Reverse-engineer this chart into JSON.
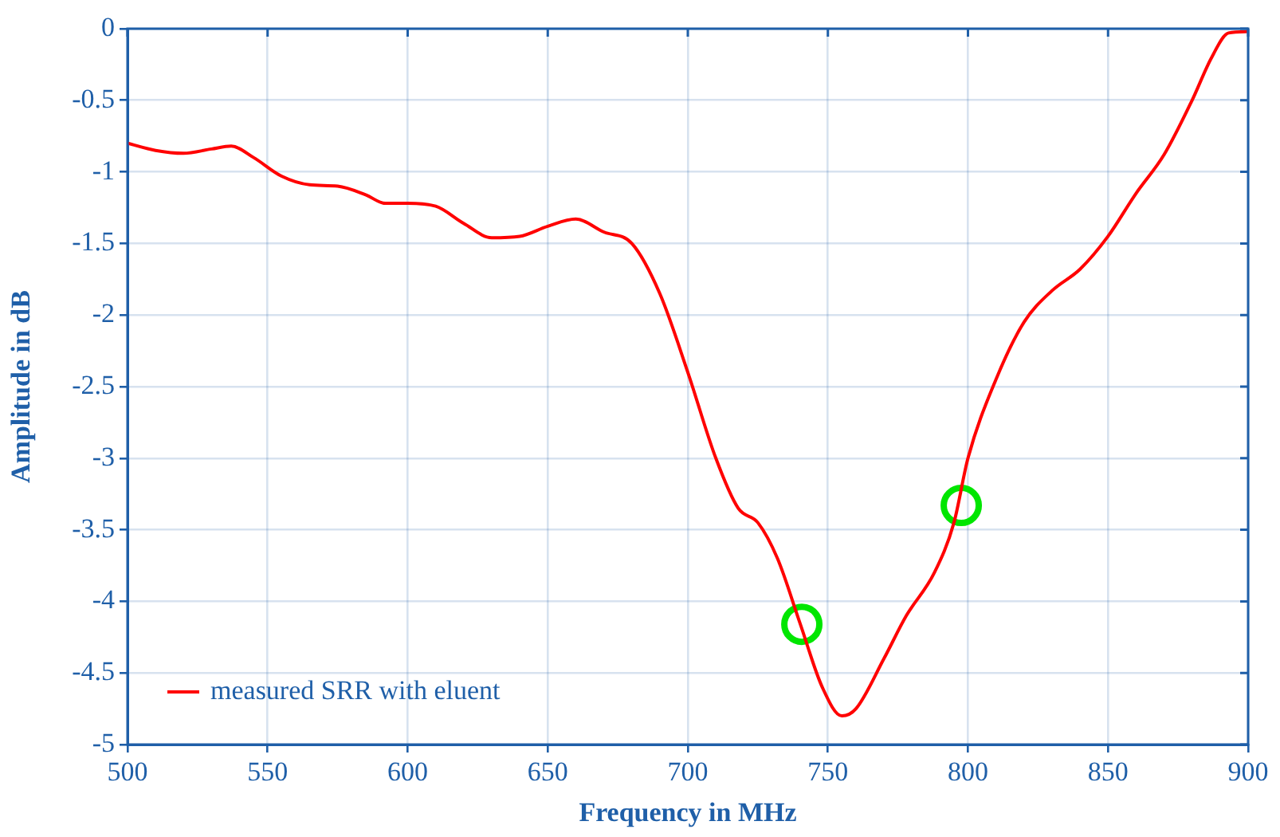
{
  "chart_data": {
    "type": "line",
    "xlabel": "Frequency in MHz",
    "ylabel": "Amplitude in dB",
    "xlim": [
      500,
      900
    ],
    "xticks": [
      500,
      550,
      600,
      650,
      700,
      750,
      800,
      850,
      900
    ],
    "ylim": [
      -5,
      0
    ],
    "yticks": [
      -5,
      -4.5,
      -4,
      -3.5,
      -3,
      -2.5,
      -2,
      -1.5,
      -1,
      -0.5,
      0
    ],
    "grid": true,
    "legend": "bottom left",
    "series": [
      {
        "name": "measured SRR with eluent",
        "color": "#ff0000",
        "marker": "none",
        "line_style": "solid",
        "x": [
          500,
          510,
          520,
          530,
          537,
          545,
          555,
          565,
          575,
          585,
          592,
          600,
          610,
          620,
          630,
          640,
          650,
          660,
          670,
          680,
          690,
          700,
          710,
          718,
          725,
          732,
          740,
          748,
          755,
          760,
          770,
          778,
          788,
          795,
          800,
          810,
          820,
          830,
          840,
          850,
          860,
          870,
          880,
          887,
          893,
          900
        ],
        "values": [
          -0.8,
          -0.85,
          -0.87,
          -0.84,
          -0.82,
          -0.9,
          -1.03,
          -1.09,
          -1.1,
          -1.16,
          -1.22,
          -1.22,
          -1.24,
          -1.36,
          -1.46,
          -1.45,
          -1.38,
          -1.33,
          -1.42,
          -1.5,
          -1.85,
          -2.4,
          -3.0,
          -3.35,
          -3.45,
          -3.7,
          -4.15,
          -4.6,
          -4.8,
          -4.75,
          -4.4,
          -4.1,
          -3.8,
          -3.45,
          -3.0,
          -2.45,
          -2.05,
          -1.83,
          -1.68,
          -1.45,
          -1.15,
          -0.88,
          -0.5,
          -0.2,
          -0.03,
          -0.02
        ]
      },
      {
        "type": "scatter",
        "color": "#00e600",
        "marker": "circle",
        "x": [
          740.7,
          797.6
        ],
        "values": [
          -4.16,
          -3.33
        ]
      }
    ]
  }
}
